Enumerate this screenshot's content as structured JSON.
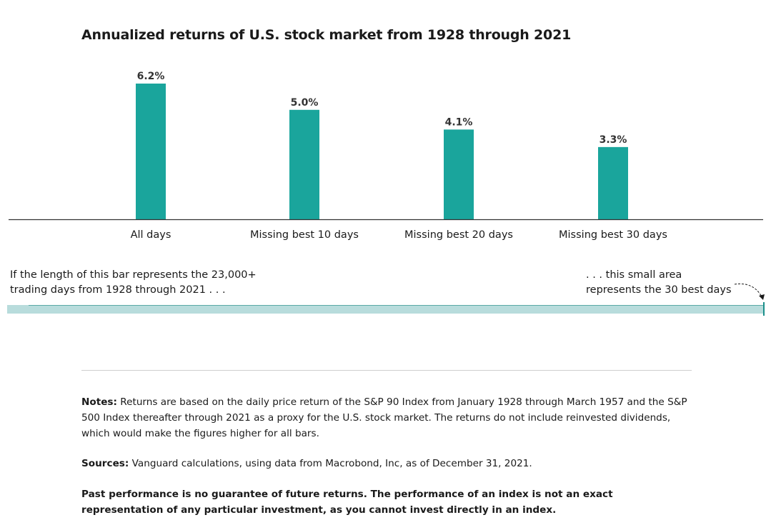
{
  "chart_data": {
    "type": "bar",
    "title": "Annualized returns of U.S. stock market from 1928 through 2021",
    "categories": [
      "All days",
      "Missing best 10 days",
      "Missing best 20 days",
      "Missing best 30 days"
    ],
    "values": [
      6.2,
      5.0,
      4.1,
      3.3
    ],
    "value_labels": [
      "6.2%",
      "5.0%",
      "4.1%",
      "3.3%"
    ],
    "ylim": [
      0,
      6.2
    ],
    "grid": false,
    "xlabel": "",
    "ylabel": "",
    "bar_color": "#1aa59c"
  },
  "annotation": {
    "left_line1": "If the length of this bar represents the 23,000+",
    "left_line2": "trading days from 1928 through 2021 . . .",
    "right_line1": ". . . this small area",
    "right_line2": "represents the 30 best days",
    "bar_color": "#b8dcdc",
    "edge_color": "#1a8f8a"
  },
  "footer": {
    "notes_label": "Notes:",
    "notes_text": " Returns are based on the daily price return of the S&P 90 Index from January 1928 through March 1957 and the S&P 500 Index thereafter through 2021 as a proxy for the U.S. stock market. The returns do not include reinvested dividends, which would make the figures higher for all bars.",
    "sources_label": "Sources:",
    "sources_text": " Vanguard calculations, using data from Macrobond, Inc, as of December 31, 2021.",
    "disclaimer": "Past performance is no guarantee of future returns. The performance of an index is not an exact representation of any particular investment, as you cannot invest directly in an index."
  }
}
